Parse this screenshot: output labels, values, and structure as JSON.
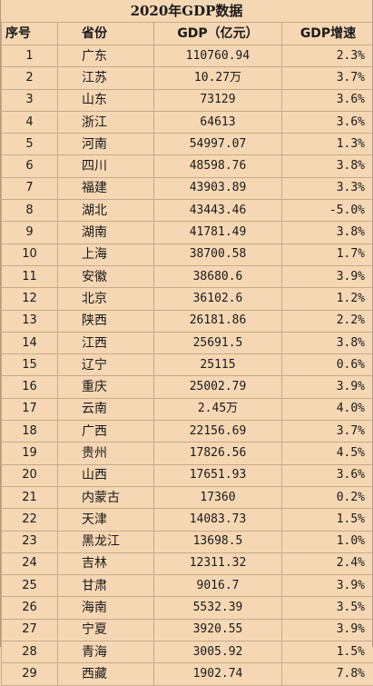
{
  "title": "2020年GDP数据",
  "headers": {
    "rank": "序号",
    "province": "省份",
    "gdp": "GDP（亿元）",
    "growth": "GDP增速"
  },
  "rows": [
    {
      "rank": "1",
      "province": "广东",
      "gdp": "110760.94",
      "growth": "2.3%"
    },
    {
      "rank": "2",
      "province": "江苏",
      "gdp": "10.27万",
      "growth": "3.7%"
    },
    {
      "rank": "3",
      "province": "山东",
      "gdp": "73129",
      "growth": "3.6%"
    },
    {
      "rank": "4",
      "province": "浙江",
      "gdp": "64613",
      "growth": "3.6%"
    },
    {
      "rank": "5",
      "province": "河南",
      "gdp": "54997.07",
      "growth": "1.3%"
    },
    {
      "rank": "6",
      "province": "四川",
      "gdp": "48598.76",
      "growth": "3.8%"
    },
    {
      "rank": "7",
      "province": "福建",
      "gdp": "43903.89",
      "growth": "3.3%"
    },
    {
      "rank": "8",
      "province": "湖北",
      "gdp": "43443.46",
      "growth": "-5.0%"
    },
    {
      "rank": "9",
      "province": "湖南",
      "gdp": "41781.49",
      "growth": "3.8%"
    },
    {
      "rank": "10",
      "province": "上海",
      "gdp": "38700.58",
      "growth": "1.7%"
    },
    {
      "rank": "11",
      "province": "安徽",
      "gdp": "38680.6",
      "growth": "3.9%"
    },
    {
      "rank": "12",
      "province": "北京",
      "gdp": "36102.6",
      "growth": "1.2%"
    },
    {
      "rank": "13",
      "province": "陕西",
      "gdp": "26181.86",
      "growth": "2.2%"
    },
    {
      "rank": "14",
      "province": "江西",
      "gdp": "25691.5",
      "growth": "3.8%"
    },
    {
      "rank": "15",
      "province": "辽宁",
      "gdp": "25115",
      "growth": "0.6%"
    },
    {
      "rank": "16",
      "province": "重庆",
      "gdp": "25002.79",
      "growth": "3.9%"
    },
    {
      "rank": "17",
      "province": "云南",
      "gdp": "2.45万",
      "growth": "4.0%"
    },
    {
      "rank": "18",
      "province": "广西",
      "gdp": "22156.69",
      "growth": "3.7%"
    },
    {
      "rank": "19",
      "province": "贵州",
      "gdp": "17826.56",
      "growth": "4.5%"
    },
    {
      "rank": "20",
      "province": "山西",
      "gdp": "17651.93",
      "growth": "3.6%"
    },
    {
      "rank": "21",
      "province": "内蒙古",
      "gdp": "17360",
      "growth": "0.2%"
    },
    {
      "rank": "22",
      "province": "天津",
      "gdp": "14083.73",
      "growth": "1.5%"
    },
    {
      "rank": "23",
      "province": "黑龙江",
      "gdp": "13698.5",
      "growth": "1.0%"
    },
    {
      "rank": "24",
      "province": "吉林",
      "gdp": "12311.32",
      "growth": "2.4%"
    },
    {
      "rank": "25",
      "province": "甘肃",
      "gdp": "9016.7",
      "growth": "3.9%"
    },
    {
      "rank": "26",
      "province": "海南",
      "gdp": "5532.39",
      "growth": "3.5%"
    },
    {
      "rank": "27",
      "province": "宁夏",
      "gdp": "3920.55",
      "growth": "3.9%"
    },
    {
      "rank": "28",
      "province": "青海",
      "gdp": "3005.92",
      "growth": "1.5%"
    },
    {
      "rank": "29",
      "province": "西藏",
      "gdp": "1902.74",
      "growth": "7.8%"
    }
  ]
}
